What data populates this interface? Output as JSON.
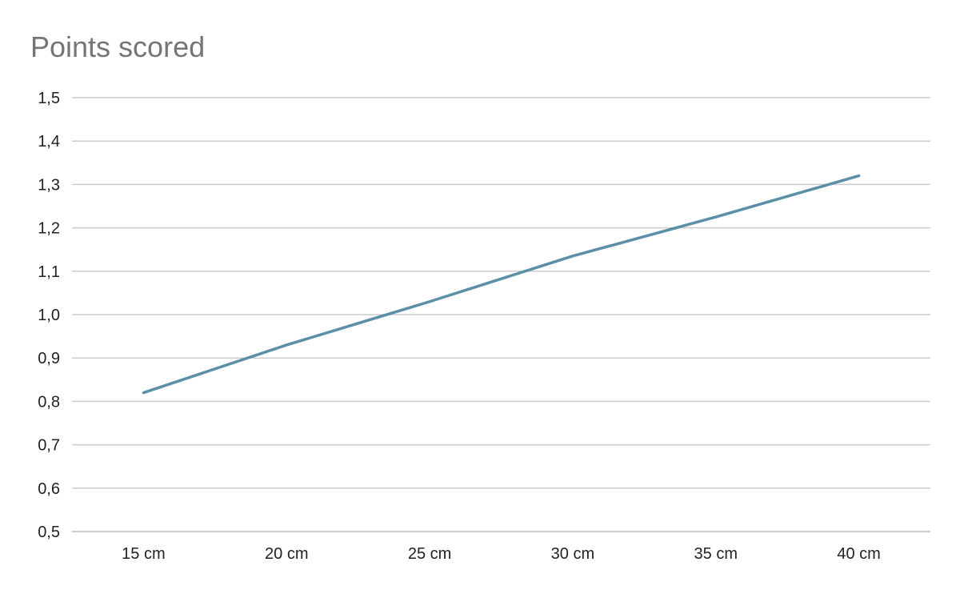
{
  "chart_data": {
    "type": "line",
    "title": "Points scored",
    "xlabel": "",
    "ylabel": "",
    "categories": [
      "15 cm",
      "20 cm",
      "25 cm",
      "30 cm",
      "35 cm",
      "40 cm"
    ],
    "series": [
      {
        "values": [
          0.82,
          0.93,
          1.03,
          1.135,
          1.225,
          1.32
        ],
        "color": "#5b8fa8"
      }
    ],
    "ylim": [
      0.5,
      1.5
    ],
    "yticks": [
      "0,5",
      "0,6",
      "0,7",
      "0,8",
      "0,9",
      "1,0",
      "1,1",
      "1,2",
      "1,3",
      "1,4",
      "1,5"
    ],
    "grid": true,
    "legend": "none"
  }
}
